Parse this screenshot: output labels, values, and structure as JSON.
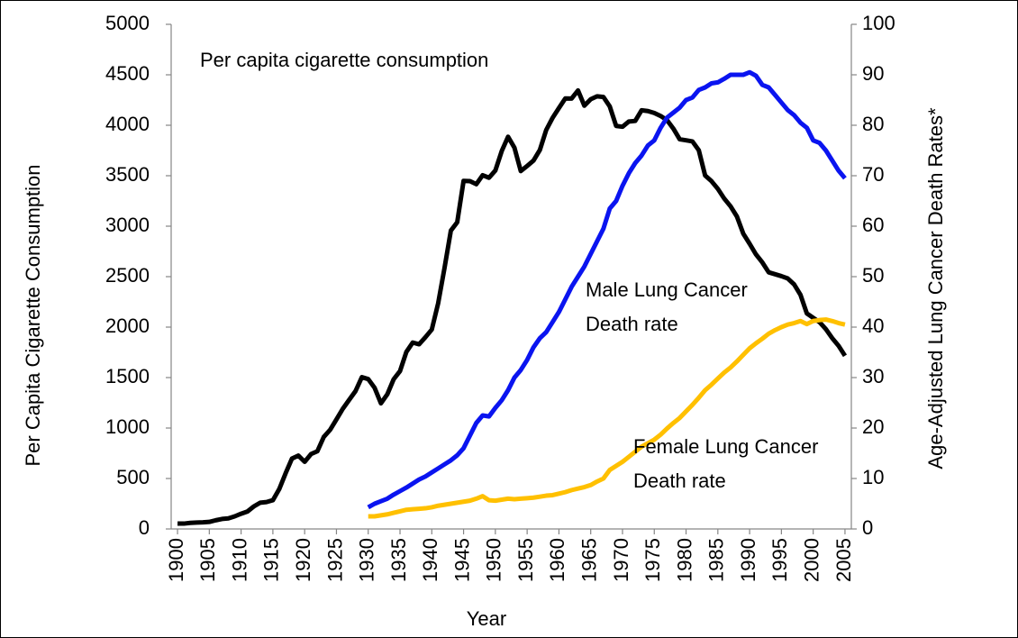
{
  "chart_data": {
    "type": "line",
    "xlabel": "Year",
    "ylabel": "Per Capita Cigarette Consumption",
    "y2label": "Age-Adjusted Lung Cancer Death Rates*",
    "x": [
      1900,
      1901,
      1902,
      1903,
      1904,
      1905,
      1906,
      1907,
      1908,
      1909,
      1910,
      1911,
      1912,
      1913,
      1914,
      1915,
      1916,
      1917,
      1918,
      1919,
      1920,
      1921,
      1922,
      1923,
      1924,
      1925,
      1926,
      1927,
      1928,
      1929,
      1930,
      1931,
      1932,
      1933,
      1934,
      1935,
      1936,
      1937,
      1938,
      1939,
      1940,
      1941,
      1942,
      1943,
      1944,
      1945,
      1946,
      1947,
      1948,
      1949,
      1950,
      1951,
      1952,
      1953,
      1954,
      1955,
      1956,
      1957,
      1958,
      1959,
      1960,
      1961,
      1962,
      1963,
      1964,
      1965,
      1966,
      1967,
      1968,
      1969,
      1970,
      1971,
      1972,
      1973,
      1974,
      1975,
      1976,
      1977,
      1978,
      1979,
      1980,
      1981,
      1982,
      1983,
      1984,
      1985,
      1986,
      1987,
      1988,
      1989,
      1990,
      1991,
      1992,
      1993,
      1994,
      1995,
      1996,
      1997,
      1998,
      1999,
      2000,
      2001,
      2002,
      2003,
      2004,
      2005
    ],
    "xlim": [
      1899,
      2006
    ],
    "xticks": [
      1900,
      1905,
      1910,
      1915,
      1920,
      1925,
      1930,
      1935,
      1940,
      1945,
      1950,
      1955,
      1960,
      1965,
      1970,
      1975,
      1980,
      1985,
      1990,
      1995,
      2000,
      2005
    ],
    "ylim": [
      0,
      5000
    ],
    "yticks": [
      0,
      500,
      1000,
      1500,
      2000,
      2500,
      3000,
      3500,
      4000,
      4500,
      5000
    ],
    "y2lim": [
      0,
      100
    ],
    "y2ticks": [
      0,
      10,
      20,
      30,
      40,
      50,
      60,
      70,
      80,
      90,
      100
    ],
    "series": [
      {
        "label": [
          "Per capita cigarette consumption"
        ],
        "color": "#000000",
        "axis": "y",
        "values": [
          54,
          53,
          60,
          64,
          66,
          70,
          86,
          99,
          105,
          125,
          151,
          173,
          223,
          260,
          267,
          285,
          395,
          551,
          697,
          727,
          665,
          742,
          770,
          911,
          982,
          1085,
          1191,
          1279,
          1366,
          1504,
          1485,
          1399,
          1245,
          1334,
          1483,
          1564,
          1754,
          1847,
          1830,
          1900,
          1976,
          2236,
          2585,
          2956,
          3039,
          3449,
          3446,
          3416,
          3505,
          3480,
          3552,
          3744,
          3886,
          3778,
          3546,
          3597,
          3650,
          3755,
          3953,
          4073,
          4171,
          4266,
          4265,
          4345,
          4194,
          4258,
          4287,
          4280,
          4186,
          3993,
          3985,
          4037,
          4043,
          4148,
          4141,
          4122,
          4092,
          4051,
          3967,
          3861,
          3851,
          3840,
          3753,
          3502,
          3446,
          3370,
          3274,
          3197,
          3096,
          2926,
          2826,
          2720,
          2641,
          2543,
          2524,
          2505,
          2482,
          2423,
          2320,
          2136,
          2092,
          2049,
          1979,
          1890,
          1814,
          1716
        ]
      },
      {
        "label": [
          "Male Lung Cancer",
          "Death rate"
        ],
        "color": "#0a14f0",
        "axis": "y2",
        "values": [
          null,
          null,
          null,
          null,
          null,
          null,
          null,
          null,
          null,
          null,
          null,
          null,
          null,
          null,
          null,
          null,
          null,
          null,
          null,
          null,
          null,
          null,
          null,
          null,
          null,
          null,
          null,
          null,
          null,
          null,
          4.3,
          5.0,
          5.5,
          6.0,
          6.8,
          7.5,
          8.2,
          9.0,
          9.8,
          10.4,
          11.2,
          12.0,
          12.8,
          13.6,
          14.6,
          16.0,
          18.5,
          21.0,
          22.5,
          22.3,
          24.0,
          25.5,
          27.5,
          30.0,
          31.5,
          33.5,
          36.0,
          37.8,
          39.0,
          41.0,
          43.0,
          45.5,
          48.0,
          50.0,
          52.0,
          54.5,
          57.0,
          59.5,
          63.5,
          65.0,
          68.0,
          70.5,
          72.5,
          74.0,
          76.0,
          77.0,
          79.5,
          81.5,
          82.5,
          83.5,
          85.0,
          85.5,
          87.0,
          87.5,
          88.3,
          88.5,
          89.2,
          90.0,
          90.0,
          90.0,
          90.5,
          89.8,
          88.0,
          87.5,
          86.0,
          84.5,
          83.0,
          82.0,
          80.5,
          79.5,
          77.0,
          76.5,
          75.0,
          73.0,
          71.0,
          69.5
        ]
      },
      {
        "label": [
          "Female Lung Cancer",
          "Death rate"
        ],
        "color": "#ffc000",
        "axis": "y2",
        "values": [
          null,
          null,
          null,
          null,
          null,
          null,
          null,
          null,
          null,
          null,
          null,
          null,
          null,
          null,
          null,
          null,
          null,
          null,
          null,
          null,
          null,
          null,
          null,
          null,
          null,
          null,
          null,
          null,
          null,
          null,
          2.5,
          2.5,
          2.7,
          2.9,
          3.2,
          3.5,
          3.8,
          3.9,
          4.0,
          4.1,
          4.3,
          4.6,
          4.8,
          5.0,
          5.2,
          5.4,
          5.6,
          6.0,
          6.5,
          5.7,
          5.6,
          5.8,
          6.0,
          5.9,
          6.0,
          6.1,
          6.2,
          6.4,
          6.6,
          6.7,
          7.0,
          7.3,
          7.7,
          8.0,
          8.3,
          8.7,
          9.4,
          10.0,
          11.7,
          12.5,
          13.3,
          14.3,
          15.3,
          16.3,
          17.0,
          17.7,
          18.7,
          19.9,
          21.0,
          22.0,
          23.3,
          24.6,
          26.0,
          27.5,
          28.6,
          29.8,
          31.0,
          32.0,
          33.2,
          34.5,
          35.8,
          36.8,
          37.7,
          38.7,
          39.4,
          40.0,
          40.5,
          40.8,
          41.2,
          40.6,
          41.2,
          41.4,
          41.5,
          41.2,
          40.8,
          40.5
        ]
      }
    ]
  }
}
